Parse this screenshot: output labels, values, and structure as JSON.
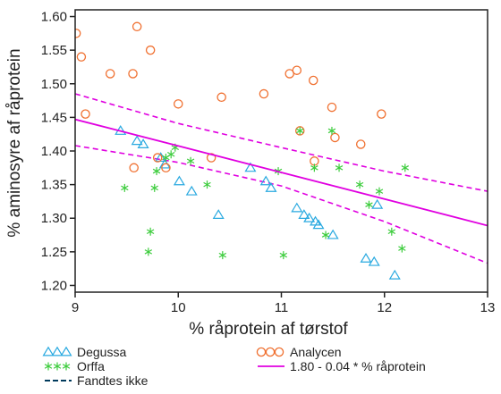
{
  "chart_data": {
    "type": "scatter",
    "xlabel": "% råprotein af tørstof",
    "ylabel": "% aminosyre af råprotein",
    "xlim": [
      9,
      13
    ],
    "ylim": [
      1.19,
      1.61
    ],
    "xticks": [
      "9",
      "10",
      "11",
      "12",
      "13"
    ],
    "yticks": [
      "1.20",
      "1.25",
      "1.30",
      "1.35",
      "1.40",
      "1.45",
      "1.50",
      "1.55",
      "1.60"
    ],
    "grid": false,
    "legend_position": "bottom",
    "colors": {
      "degussa": "#29a9e0",
      "orffa": "#3ccc3c",
      "analycen": "#f07030",
      "regression": "#e000e0",
      "fandtes_ikke": "#003a5c",
      "axis": "#222222"
    },
    "series": [
      {
        "name": "Degussa",
        "marker": "triangle",
        "x": [
          9.44,
          9.6,
          9.66,
          9.83,
          9.87,
          10.01,
          10.13,
          10.39,
          10.7,
          10.85,
          10.9,
          11.15,
          11.22,
          11.27,
          11.33,
          11.36,
          11.5,
          11.82,
          11.9,
          11.93,
          12.1
        ],
        "y": [
          1.43,
          1.415,
          1.41,
          1.39,
          1.38,
          1.355,
          1.34,
          1.305,
          1.375,
          1.355,
          1.345,
          1.315,
          1.305,
          1.3,
          1.295,
          1.29,
          1.275,
          1.24,
          1.235,
          1.32,
          1.215
        ]
      },
      {
        "name": "Analycen",
        "marker": "circle",
        "x": [
          9.01,
          9.06,
          9.1,
          9.34,
          9.56,
          9.57,
          9.6,
          9.73,
          9.8,
          9.88,
          10.0,
          10.32,
          10.42,
          10.83,
          11.08,
          11.15,
          11.18,
          11.31,
          11.32,
          11.49,
          11.52,
          11.77,
          11.97
        ],
        "y": [
          1.575,
          1.54,
          1.455,
          1.515,
          1.515,
          1.375,
          1.585,
          1.55,
          1.39,
          1.375,
          1.47,
          1.39,
          1.48,
          1.485,
          1.515,
          1.52,
          1.43,
          1.505,
          1.385,
          1.465,
          1.42,
          1.41,
          1.455
        ]
      },
      {
        "name": "Orffa",
        "marker": "star",
        "x": [
          9.48,
          9.71,
          9.73,
          9.77,
          9.79,
          9.88,
          9.93,
          9.97,
          10.12,
          10.28,
          10.43,
          10.97,
          11.02,
          11.18,
          11.32,
          11.43,
          11.49,
          11.56,
          11.76,
          11.85,
          11.95,
          12.07,
          12.17,
          12.2
        ],
        "y": [
          1.345,
          1.25,
          1.28,
          1.345,
          1.37,
          1.39,
          1.395,
          1.405,
          1.385,
          1.35,
          1.245,
          1.37,
          1.245,
          1.43,
          1.375,
          1.275,
          1.43,
          1.375,
          1.35,
          1.32,
          1.34,
          1.28,
          1.255,
          1.375
        ]
      }
    ],
    "regression": {
      "name": "1.80 - 0.04 * % råprotein",
      "x": [
        9,
        13
      ],
      "y": [
        1.447,
        1.289
      ]
    },
    "confidence_band": {
      "x": [
        9,
        10,
        11,
        12,
        13
      ],
      "upper": [
        1.485,
        1.441,
        1.405,
        1.37,
        1.34
      ],
      "lower": [
        1.408,
        1.383,
        1.348,
        1.295,
        1.233
      ]
    },
    "legend": [
      {
        "label": "Degussa",
        "marker": "triangle"
      },
      {
        "label": "Analycen",
        "marker": "circle"
      },
      {
        "label": "Orffa",
        "marker": "star"
      },
      {
        "label": "1.80 - 0.04 * % råprotein",
        "marker": "line"
      },
      {
        "label": "Fandtes ikke",
        "marker": "dashed-line"
      }
    ]
  }
}
